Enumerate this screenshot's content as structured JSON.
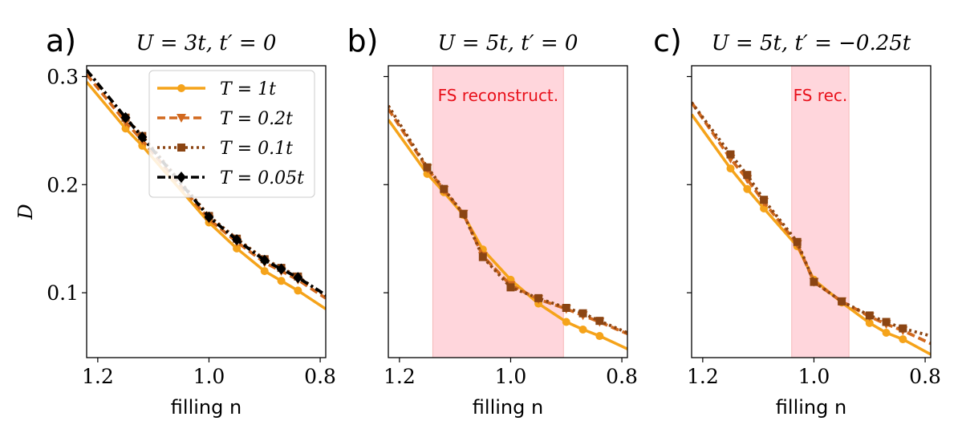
{
  "chart_data": [
    {
      "type": "line",
      "panel_label": "a)",
      "title": "U = 3t, t′ = 0",
      "xlabel": "filling n",
      "ylabel": "D",
      "xlim": [
        1.22,
        0.79
      ],
      "ylim": [
        0.04,
        0.31
      ],
      "xticks": [
        1.2,
        1.0,
        0.8
      ],
      "xtick_labels": [
        "1.2",
        "1.0",
        "0.8"
      ],
      "yticks": [
        0.1,
        0.2,
        0.3
      ],
      "ytick_labels": [
        "0.1",
        "0.2",
        "0.3"
      ],
      "legend_position": "top-right",
      "shaded_region": null,
      "series": [
        {
          "name": "T = 1t",
          "color": "#f5a31a",
          "dash": "solid",
          "marker": "circle",
          "x": [
            1.15,
            1.12,
            1.0,
            0.95,
            0.9,
            0.87,
            0.84
          ],
          "y": [
            0.252,
            0.236,
            0.165,
            0.141,
            0.12,
            0.111,
            0.102
          ],
          "curve_x": [
            1.22,
            0.79
          ],
          "curve_y": [
            0.295,
            0.085
          ]
        },
        {
          "name": "T = 0.2t",
          "color": "#d2691e",
          "dash": "dashed",
          "marker": "triangle-down",
          "x": [
            1.15,
            1.12,
            1.0,
            0.95,
            0.9,
            0.87,
            0.84
          ],
          "y": [
            0.258,
            0.241,
            0.168,
            0.147,
            0.128,
            0.12,
            0.112
          ],
          "curve_x": [
            1.22,
            0.79
          ],
          "curve_y": [
            0.302,
            0.095
          ]
        },
        {
          "name": "T = 0.1t",
          "color": "#8b4513",
          "dash": "dotted",
          "marker": "square",
          "x": [
            1.15,
            1.12,
            1.0,
            0.95,
            0.9,
            0.87,
            0.84
          ],
          "y": [
            0.262,
            0.245,
            0.171,
            0.15,
            0.131,
            0.123,
            0.115
          ],
          "curve_x": [
            1.22,
            0.79
          ],
          "curve_y": [
            0.306,
            0.097
          ]
        },
        {
          "name": "T = 0.05t",
          "color": "#000000",
          "dash": "dashdot",
          "marker": "diamond",
          "x": [
            1.15,
            1.12,
            1.0,
            0.95,
            0.9,
            0.87,
            0.84
          ],
          "y": [
            0.262,
            0.244,
            0.17,
            0.149,
            0.13,
            0.122,
            0.114
          ],
          "curve_x": [
            1.22,
            0.79
          ],
          "curve_y": [
            0.306,
            0.098
          ]
        }
      ]
    },
    {
      "type": "line",
      "panel_label": "b)",
      "title": "U = 5t, t′ = 0",
      "xlabel": "filling n",
      "ylabel": "",
      "xlim": [
        1.22,
        0.79
      ],
      "ylim": [
        0.04,
        0.31
      ],
      "xticks": [
        1.2,
        1.0,
        0.8
      ],
      "xtick_labels": [
        "1.2",
        "1.0",
        "0.8"
      ],
      "yticks": [
        0.1,
        0.2,
        0.3
      ],
      "ytick_labels": [],
      "shaded_region": {
        "x_from": 1.14,
        "x_to": 0.905,
        "label": "FS reconstruct.",
        "color": "#ffb6c1"
      },
      "series": [
        {
          "name": "T = 1t",
          "color": "#f5a31a",
          "dash": "solid",
          "marker": "circle",
          "x": [
            1.15,
            1.12,
            1.085,
            1.05,
            1.0,
            0.95,
            0.9,
            0.87,
            0.84
          ],
          "y": [
            0.21,
            0.193,
            0.172,
            0.14,
            0.112,
            0.09,
            0.073,
            0.066,
            0.06
          ],
          "curve_x": [
            1.22,
            0.79
          ],
          "curve_y": [
            0.26,
            0.048
          ]
        },
        {
          "name": "T = 0.2t",
          "color": "#d2691e",
          "dash": "dashed",
          "marker": "triangle-down",
          "x": [
            1.15,
            1.12,
            1.085,
            1.05,
            1.0,
            0.95,
            0.9,
            0.87,
            0.84
          ],
          "y": [
            0.215,
            0.195,
            0.173,
            0.134,
            0.107,
            0.094,
            0.085,
            0.079,
            0.073
          ],
          "curve_x": [
            1.22,
            0.79
          ],
          "curve_y": [
            0.27,
            0.062
          ]
        },
        {
          "name": "T = 0.1t",
          "color": "#8b4513",
          "dash": "dotted",
          "marker": "square",
          "x": [
            1.15,
            1.12,
            1.085,
            1.05,
            1.0,
            0.95,
            0.9,
            0.87,
            0.84
          ],
          "y": [
            0.216,
            0.196,
            0.173,
            0.133,
            0.105,
            0.095,
            0.086,
            0.081,
            0.074
          ],
          "curve_x": [
            1.22,
            0.79
          ],
          "curve_y": [
            0.273,
            0.063
          ]
        }
      ]
    },
    {
      "type": "line",
      "panel_label": "c)",
      "title": "U = 5t, t′ = −0.25t",
      "xlabel": "filling n",
      "ylabel": "",
      "xlim": [
        1.22,
        0.79
      ],
      "ylim": [
        0.04,
        0.31
      ],
      "xticks": [
        1.2,
        1.0,
        0.8
      ],
      "xtick_labels": [
        "1.2",
        "1.0",
        "0.8"
      ],
      "yticks": [
        0.1,
        0.2,
        0.3
      ],
      "ytick_labels": [],
      "shaded_region": {
        "x_from": 1.04,
        "x_to": 0.937,
        "label": "FS rec.",
        "color": "#ffb6c1"
      },
      "series": [
        {
          "name": "T = 1t",
          "color": "#f5a31a",
          "dash": "solid",
          "marker": "circle",
          "x": [
            1.15,
            1.12,
            1.09,
            1.03,
            1.0,
            0.95,
            0.9,
            0.87,
            0.84
          ],
          "y": [
            0.215,
            0.196,
            0.178,
            0.143,
            0.112,
            0.091,
            0.072,
            0.063,
            0.057
          ],
          "curve_x": [
            1.22,
            0.79
          ],
          "curve_y": [
            0.265,
            0.043
          ]
        },
        {
          "name": "T = 0.2t",
          "color": "#d2691e",
          "dash": "dashed",
          "marker": "triangle-down",
          "x": [
            1.15,
            1.12,
            1.09,
            1.03,
            1.0,
            0.95,
            0.9,
            0.87,
            0.84
          ],
          "y": [
            0.224,
            0.205,
            0.184,
            0.145,
            0.11,
            0.092,
            0.078,
            0.071,
            0.065
          ],
          "curve_x": [
            1.22,
            0.79
          ],
          "curve_y": [
            0.276,
            0.053
          ]
        },
        {
          "name": "T = 0.1t",
          "color": "#8b4513",
          "dash": "dotted",
          "marker": "square",
          "x": [
            1.15,
            1.12,
            1.09,
            1.03,
            1.0,
            0.95,
            0.9,
            0.87,
            0.84
          ],
          "y": [
            0.228,
            0.209,
            0.186,
            0.147,
            0.11,
            0.092,
            0.079,
            0.073,
            0.067
          ],
          "curve_x": [
            1.22,
            0.79
          ],
          "curve_y": [
            0.276,
            0.06
          ]
        }
      ]
    }
  ]
}
